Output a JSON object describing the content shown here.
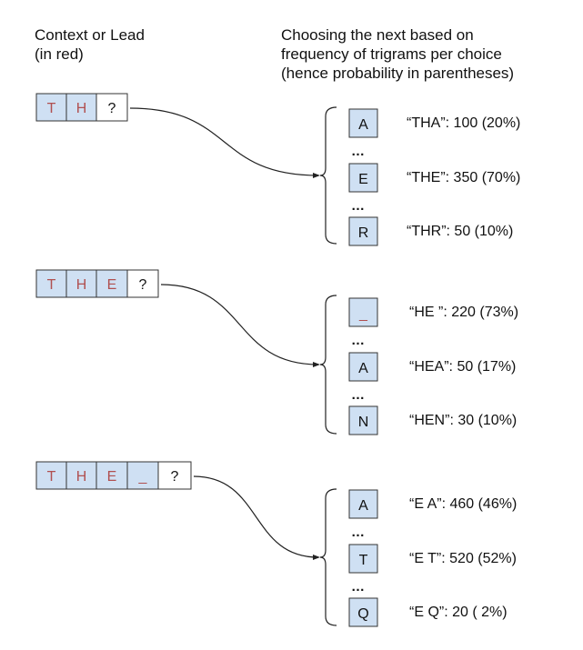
{
  "header": {
    "left_lines": [
      "Context or Lead",
      "(in red)"
    ],
    "right_lines": [
      "Choosing the next based on",
      "frequency of trigrams per choice",
      "(hence probability in parentheses)"
    ]
  },
  "colors": {
    "cell_fill": "#cfe0f3",
    "cell_stroke": "#333333",
    "context_text": "#b05050",
    "query_text": "#111111"
  },
  "ellipsis": "…",
  "groups": [
    {
      "context": [
        "T",
        "H"
      ],
      "query": "?",
      "choices": [
        {
          "char": "A",
          "label": "“THA”: 100 (20%)"
        },
        {
          "char": "E",
          "label": "“THE”: 350 (70%)"
        },
        {
          "char": "R",
          "label": "“THR”:  50 (10%)"
        }
      ]
    },
    {
      "context": [
        "T",
        "H",
        "E"
      ],
      "query": "?",
      "choices": [
        {
          "char": "_",
          "label": "“HE ”:  220 (73%)",
          "red": true
        },
        {
          "char": "A",
          "label": "“HEA”: 50 (17%)"
        },
        {
          "char": "N",
          "label": "“HEN”: 30 (10%)"
        }
      ]
    },
    {
      "context": [
        "T",
        "H",
        "E",
        "_"
      ],
      "query": "?",
      "choices": [
        {
          "char": "A",
          "label": "“E A”:  460 (46%)"
        },
        {
          "char": "T",
          "label": "“E T”: 520 (52%)"
        },
        {
          "char": "Q",
          "label": "“E Q”:  20 ( 2%)"
        }
      ]
    }
  ]
}
